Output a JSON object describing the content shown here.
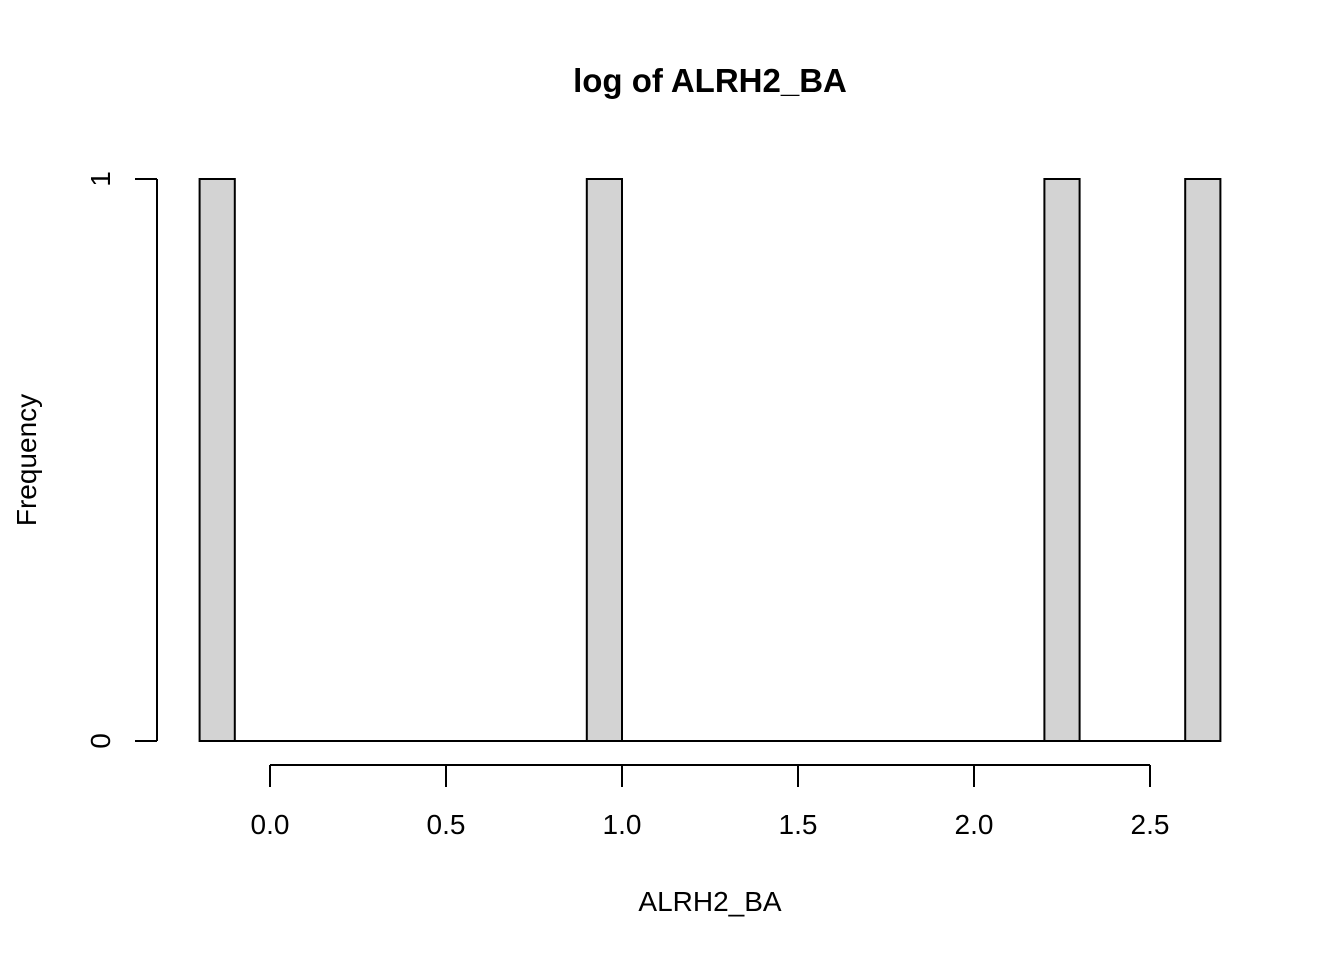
{
  "chart_data": {
    "type": "bar",
    "title": "log of ALRH2_BA",
    "xlabel": "ALRH2_BA",
    "ylabel": "Frequency",
    "xlim": [
      -0.2,
      2.7
    ],
    "ylim": [
      0,
      1
    ],
    "x_ticks": [
      "0.0",
      "0.5",
      "1.0",
      "1.5",
      "2.0",
      "2.5"
    ],
    "y_ticks": [
      "0",
      "1"
    ],
    "bins": [
      {
        "start": -0.2,
        "end": -0.1,
        "count": 1
      },
      {
        "start": 0.9,
        "end": 1.0,
        "count": 1
      },
      {
        "start": 2.2,
        "end": 2.3,
        "count": 1
      },
      {
        "start": 2.6,
        "end": 2.7,
        "count": 1
      }
    ],
    "bar_fill": "#d3d3d3",
    "bar_stroke": "#000000",
    "grid": false,
    "legend": "none"
  }
}
